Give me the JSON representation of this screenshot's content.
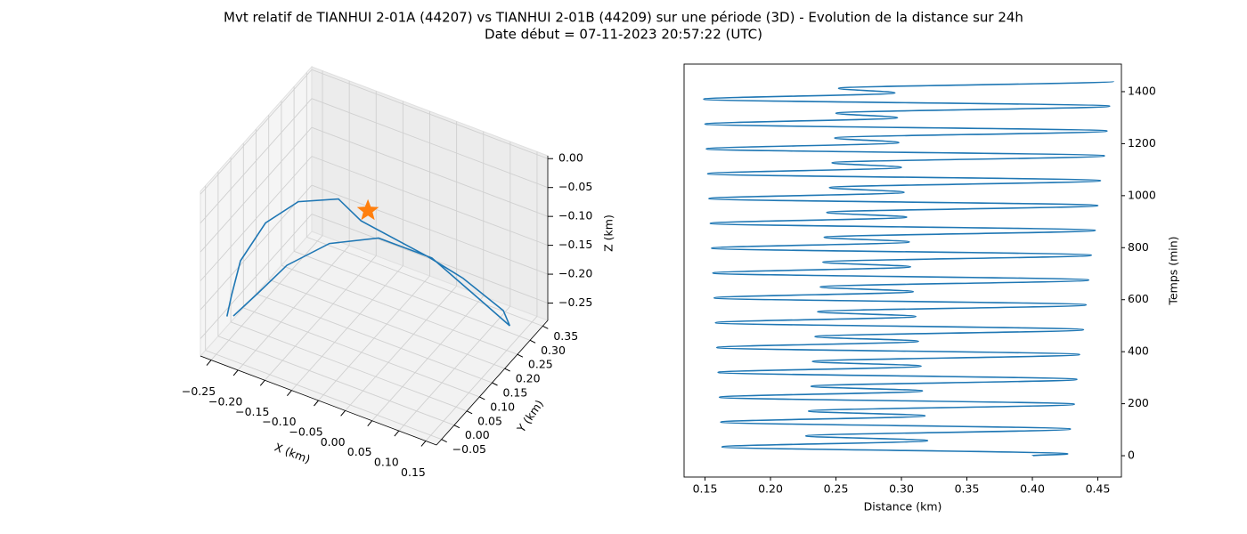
{
  "title": "Mvt relatif de TIANHUI 2-01A (44207) vs TIANHUI 2-01B (44209) sur une période (3D) - Evolution de la distance sur 24h",
  "subtitle": "Date début = 07-11-2023 20:57:22 (UTC)",
  "chart_data": [
    {
      "type": "line3d",
      "xlabel": "X (km)",
      "ylabel": "Y (km)",
      "zlabel": "Z (km)",
      "color": "#1f77b4",
      "x": [
        -0.262,
        -0.264,
        -0.268,
        -0.242,
        -0.212,
        -0.158,
        -0.116,
        0.019,
        0.095,
        0.139,
        0.151,
        0.149,
        0.068,
        -0.021,
        -0.102,
        -0.171,
        -0.214,
        -0.25
      ],
      "y": [
        0.018,
        0.04,
        0.084,
        0.128,
        0.194,
        0.238,
        0.238,
        0.216,
        0.194,
        0.26,
        0.26,
        0.15,
        0.128,
        0.106,
        0.084,
        0.062,
        0.04,
        0.018
      ],
      "z": [
        -0.252,
        -0.227,
        -0.19,
        -0.137,
        -0.122,
        -0.12,
        -0.143,
        -0.147,
        -0.147,
        -0.22,
        -0.242,
        -0.145,
        -0.089,
        -0.075,
        -0.102,
        -0.153,
        -0.205,
        -0.247
      ],
      "marker": {
        "x": -0.103,
        "y": 0.238,
        "z": -0.121,
        "color": "#ff7f0e"
      },
      "xlim": [
        -0.27,
        0.17
      ],
      "ylim": [
        -0.07,
        0.37
      ],
      "zlim": [
        -0.28,
        0.005
      ],
      "xticks": [
        {
          "value": -0.25,
          "label": "−0.25"
        },
        {
          "value": -0.2,
          "label": "−0.20"
        },
        {
          "value": -0.15,
          "label": "−0.15"
        },
        {
          "value": -0.1,
          "label": "−0.10"
        },
        {
          "value": -0.05,
          "label": "−0.05"
        },
        {
          "value": 0,
          "label": "0.00"
        },
        0.05,
        {
          "value": 0.1,
          "label": "0.10"
        },
        0.15
      ],
      "yticks": [
        {
          "value": -0.05,
          "label": "−0.05"
        },
        {
          "value": 0,
          "label": "0.00"
        },
        0.05,
        {
          "value": 0.1,
          "label": "0.10"
        },
        0.15,
        {
          "value": 0.2,
          "label": "0.20"
        },
        0.25,
        {
          "value": 0.3,
          "label": "0.30"
        },
        0.35
      ],
      "zticks": [
        {
          "value": -0.25,
          "label": "−0.25"
        },
        {
          "value": -0.2,
          "label": "−0.20"
        },
        {
          "value": -0.15,
          "label": "−0.15"
        },
        {
          "value": -0.1,
          "label": "−0.10"
        },
        {
          "value": -0.05,
          "label": "−0.05"
        },
        {
          "value": 0,
          "label": "0.00"
        }
      ],
      "grid": true
    },
    {
      "type": "line",
      "xlabel": "Distance (km)",
      "ylabel": "Temps (min)",
      "color": "#1f77b4",
      "yaxis": "right",
      "x": [
        0.4,
        0.427,
        0.163,
        0.32,
        0.227,
        0.429,
        0.162,
        0.318,
        0.229,
        0.432,
        0.161,
        0.316,
        0.231,
        0.434,
        0.16,
        0.315,
        0.232,
        0.436,
        0.159,
        0.313,
        0.234,
        0.439,
        0.158,
        0.311,
        0.236,
        0.441,
        0.157,
        0.309,
        0.238,
        0.443,
        0.156,
        0.307,
        0.24,
        0.445,
        0.155,
        0.306,
        0.241,
        0.448,
        0.154,
        0.304,
        0.243,
        0.45,
        0.153,
        0.302,
        0.245,
        0.452,
        0.152,
        0.3,
        0.247,
        0.455,
        0.151,
        0.298,
        0.249,
        0.457,
        0.15,
        0.297,
        0.25,
        0.459,
        0.149,
        0.295,
        0.252,
        0.462
      ],
      "y": [
        0,
        7,
        34,
        58,
        76,
        102.5,
        129.5,
        153.5,
        171.5,
        198,
        225,
        249,
        267,
        293.5,
        320.5,
        344.5,
        362.5,
        389,
        416,
        440,
        458,
        484.5,
        511.5,
        535.5,
        553.5,
        580,
        607,
        631,
        649,
        675.5,
        702.5,
        726.5,
        744.5,
        771,
        798,
        822,
        840,
        866.5,
        893.5,
        917.5,
        935.5,
        962,
        989,
        1013,
        1031,
        1057.5,
        1084.5,
        1108.5,
        1126.5,
        1153,
        1180,
        1204,
        1222,
        1248.5,
        1275.5,
        1299.5,
        1317.5,
        1344,
        1371,
        1395,
        1413,
        1439.5
      ],
      "xlim": [
        0.134,
        0.468
      ],
      "ylim": [
        -82,
        1506
      ],
      "xticks": [
        0.15,
        {
          "value": 0.2,
          "label": "0.20"
        },
        0.25,
        {
          "value": 0.3,
          "label": "0.30"
        },
        0.35,
        {
          "value": 0.4,
          "label": "0.40"
        },
        0.45
      ],
      "yticks": [
        0,
        200,
        400,
        600,
        800,
        1000,
        1200,
        1400
      ],
      "grid": false
    }
  ]
}
